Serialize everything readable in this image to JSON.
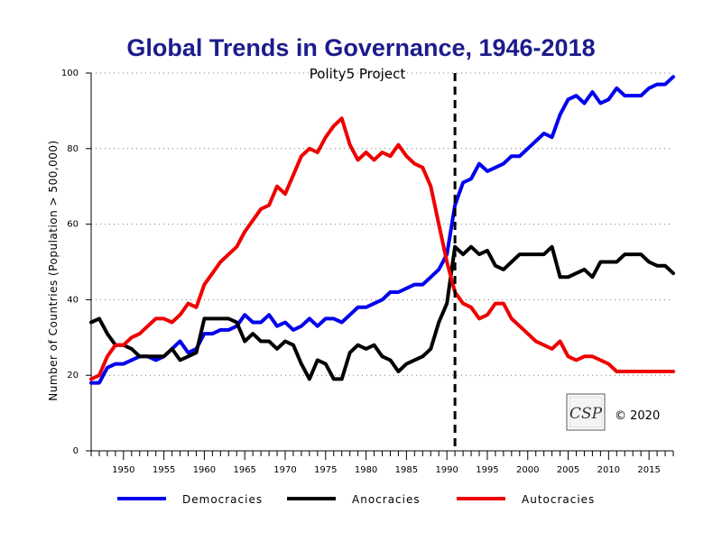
{
  "chart_data": {
    "type": "line",
    "title": "Global Trends in Governance, 1946-2018",
    "subtitle": "Polity5 Project",
    "ylabel": "Number of Countries (Population > 500,000)",
    "xlabel": "",
    "xlim": [
      1946,
      2018
    ],
    "ylim": [
      0,
      100
    ],
    "yticks": [
      0,
      20,
      40,
      60,
      80,
      100
    ],
    "xticks": [
      1950,
      1955,
      1960,
      1965,
      1970,
      1975,
      1980,
      1985,
      1990,
      1995,
      2000,
      2005,
      2010,
      2015
    ],
    "grid": "horizontal-dotted",
    "reference_line": {
      "x": 1991,
      "style": "dashed"
    },
    "legend_position": "bottom",
    "copyright": "© 2020",
    "logo_text": "CSP",
    "x": [
      1946,
      1947,
      1948,
      1949,
      1950,
      1951,
      1952,
      1953,
      1954,
      1955,
      1956,
      1957,
      1958,
      1959,
      1960,
      1961,
      1962,
      1963,
      1964,
      1965,
      1966,
      1967,
      1968,
      1969,
      1970,
      1971,
      1972,
      1973,
      1974,
      1975,
      1976,
      1977,
      1978,
      1979,
      1980,
      1981,
      1982,
      1983,
      1984,
      1985,
      1986,
      1987,
      1988,
      1989,
      1990,
      1991,
      1992,
      1993,
      1994,
      1995,
      1996,
      1997,
      1998,
      1999,
      2000,
      2001,
      2002,
      2003,
      2004,
      2005,
      2006,
      2007,
      2008,
      2009,
      2010,
      2011,
      2012,
      2013,
      2014,
      2015,
      2016,
      2017,
      2018
    ],
    "series": [
      {
        "name": "Democracies",
        "color": "#0000ee",
        "values": [
          18,
          18,
          22,
          23,
          23,
          24,
          25,
          25,
          24,
          25,
          27,
          29,
          26,
          27,
          31,
          31,
          32,
          32,
          33,
          36,
          34,
          34,
          36,
          33,
          34,
          32,
          33,
          35,
          33,
          35,
          35,
          34,
          36,
          38,
          38,
          39,
          40,
          42,
          42,
          43,
          44,
          44,
          46,
          48,
          52,
          65,
          71,
          72,
          76,
          74,
          75,
          76,
          78,
          78,
          80,
          82,
          84,
          83,
          89,
          93,
          94,
          92,
          95,
          92,
          93,
          96,
          94,
          94,
          94,
          96,
          97,
          97,
          99
        ]
      },
      {
        "name": "Anocracies",
        "color": "#000000",
        "values": [
          34,
          35,
          31,
          28,
          28,
          27,
          25,
          25,
          25,
          25,
          27,
          24,
          25,
          26,
          35,
          35,
          35,
          35,
          34,
          29,
          31,
          29,
          29,
          27,
          29,
          28,
          23,
          19,
          24,
          23,
          19,
          19,
          26,
          28,
          27,
          28,
          25,
          24,
          21,
          23,
          24,
          25,
          27,
          34,
          39,
          54,
          52,
          54,
          52,
          53,
          49,
          48,
          50,
          52,
          52,
          52,
          52,
          54,
          46,
          46,
          47,
          48,
          46,
          50,
          50,
          50,
          52,
          52,
          52,
          50,
          49,
          49,
          47
        ]
      },
      {
        "name": "Autocracies",
        "color": "#ee0000",
        "values": [
          19,
          20,
          25,
          28,
          28,
          30,
          31,
          33,
          35,
          35,
          34,
          36,
          39,
          38,
          44,
          47,
          50,
          52,
          54,
          58,
          61,
          64,
          65,
          70,
          68,
          73,
          78,
          80,
          79,
          83,
          86,
          88,
          81,
          77,
          79,
          77,
          79,
          78,
          81,
          78,
          76,
          75,
          70,
          60,
          50,
          42,
          39,
          38,
          35,
          36,
          39,
          39,
          35,
          33,
          31,
          29,
          28,
          27,
          29,
          25,
          24,
          25,
          25,
          24,
          23,
          21,
          21,
          21,
          21,
          21,
          21,
          21,
          21
        ]
      }
    ]
  }
}
